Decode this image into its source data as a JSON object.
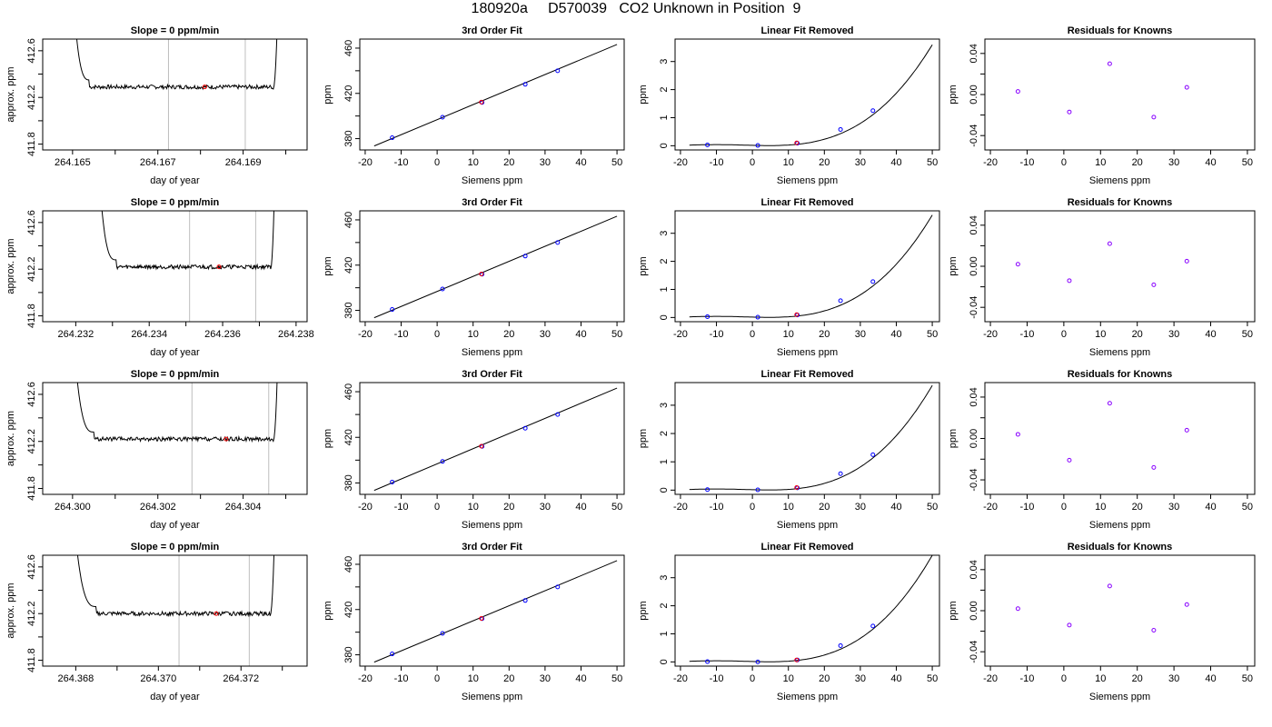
{
  "page_title": "180920a     D570039   CO2 Unknown in Position  9",
  "chart_data": [
    {
      "row": 1,
      "col": 1,
      "type": "line",
      "title": "Slope =  0  ppm/min",
      "xlabel": "day of year",
      "ylabel": "approx. ppm",
      "xlim": [
        264.1643,
        264.1705
      ],
      "ylim": [
        411.75,
        412.7
      ],
      "xticks": [
        264.165,
        264.167,
        264.169
      ],
      "xtick_labels": [
        "264.165",
        "264.167",
        "264.169"
      ],
      "minor_xticks": [
        264.166,
        264.168,
        264.17
      ],
      "yticks": [
        411.8,
        412.2,
        412.6
      ],
      "ytick_labels": [
        "411.8",
        "412.2",
        "412.6"
      ],
      "minor_yticks": [
        412.0,
        412.4
      ],
      "vlines": [
        264.16725,
        264.16905
      ],
      "baseline": 412.29,
      "start_x": 264.1649,
      "end_x": 264.1699,
      "plateau_start": 264.1654,
      "plateau_end": 264.1697,
      "marker": {
        "x": 264.1681,
        "y": 412.29,
        "color": "#ff0000"
      }
    },
    {
      "row": 1,
      "col": 2,
      "type": "line",
      "title": "3rd Order Fit",
      "xlabel": "Siemens ppm",
      "ylabel": "ppm",
      "xlim": [
        -21.5,
        52
      ],
      "ylim": [
        370,
        468
      ],
      "xticks": [
        -20,
        -10,
        0,
        10,
        20,
        30,
        40,
        50
      ],
      "xtick_labels": [
        "-20",
        "-10",
        "0",
        "10",
        "20",
        "30",
        "40",
        "50"
      ],
      "yticks": [
        380,
        420,
        460
      ],
      "ytick_labels": [
        "380",
        "420",
        "460"
      ],
      "minor_yticks": [
        400,
        440
      ],
      "line": {
        "x": [
          -17.5,
          50
        ],
        "y": [
          373.5,
          463.2
        ]
      },
      "points": {
        "x": [
          -12.5,
          1.5,
          12.5,
          24.5,
          33.5
        ],
        "y": [
          380.8,
          398.9,
          412.0,
          428.0,
          440.0
        ]
      },
      "unknown": {
        "x": 12.3,
        "y": 412.3
      }
    },
    {
      "row": 1,
      "col": 3,
      "type": "line",
      "title": "Linear Fit Removed",
      "xlabel": "Siemens ppm",
      "ylabel": "ppm",
      "xlim": [
        -21.5,
        52
      ],
      "ylim": [
        -0.15,
        3.8
      ],
      "xticks": [
        -20,
        -10,
        0,
        10,
        20,
        30,
        40,
        50
      ],
      "xtick_labels": [
        "-20",
        "-10",
        "0",
        "10",
        "20",
        "30",
        "40",
        "50"
      ],
      "yticks": [
        0,
        1,
        2,
        3
      ],
      "ytick_labels": [
        "0",
        "1",
        "2",
        "3"
      ],
      "curve_top": 3.6,
      "points": {
        "x": [
          -12.5,
          1.5,
          12.5,
          24.5,
          33.5
        ],
        "y": [
          0.03,
          0.01,
          0.09,
          0.58,
          1.25
        ]
      },
      "unknown": {
        "x": 12.3,
        "y": 0.1
      }
    },
    {
      "row": 1,
      "col": 4,
      "type": "scatter",
      "title": "Residuals for Knowns",
      "xlabel": "Siemens ppm",
      "ylabel": "ppm",
      "xlim": [
        -21.5,
        52
      ],
      "ylim": [
        -0.054,
        0.054
      ],
      "xticks": [
        -20,
        -10,
        0,
        10,
        20,
        30,
        40,
        50
      ],
      "xtick_labels": [
        "-20",
        "-10",
        "0",
        "10",
        "20",
        "30",
        "40",
        "50"
      ],
      "yticks": [
        -0.04,
        0.0,
        0.04
      ],
      "ytick_labels": [
        "-0.04",
        "0.00",
        "0.04"
      ],
      "minor_yticks": [
        -0.02,
        0.02
      ],
      "points": {
        "x": [
          -12.5,
          1.5,
          12.5,
          24.5,
          33.5
        ],
        "y": [
          0.003,
          -0.017,
          0.03,
          -0.022,
          0.007
        ]
      }
    },
    {
      "row": 2,
      "col": 1,
      "type": "line",
      "title": "Slope =  0  ppm/min",
      "xlabel": "day of year",
      "ylabel": "approx. ppm",
      "xlim": [
        264.2311,
        264.2383
      ],
      "ylim": [
        411.75,
        412.7
      ],
      "xticks": [
        264.232,
        264.234,
        264.236,
        264.238
      ],
      "xtick_labels": [
        "264.232",
        "264.234",
        "264.236",
        "264.238"
      ],
      "minor_xticks": [
        264.233,
        264.235,
        264.237
      ],
      "yticks": [
        411.8,
        412.2,
        412.6
      ],
      "ytick_labels": [
        "411.8",
        "412.2",
        "412.6"
      ],
      "minor_yticks": [
        412.0,
        412.4
      ],
      "vlines": [
        264.2351,
        264.2369
      ],
      "baseline": 412.22,
      "start_x": 264.2325,
      "end_x": 264.2375,
      "plateau_start": 264.2331,
      "plateau_end": 264.2373,
      "marker": {
        "x": 264.2359,
        "y": 412.22,
        "color": "#ff0000"
      }
    },
    {
      "row": 2,
      "col": 2,
      "type": "line",
      "title": "3rd Order Fit",
      "xlabel": "Siemens ppm",
      "ylabel": "ppm",
      "xlim": [
        -21.5,
        52
      ],
      "ylim": [
        370,
        468
      ],
      "xticks": [
        -20,
        -10,
        0,
        10,
        20,
        30,
        40,
        50
      ],
      "xtick_labels": [
        "-20",
        "-10",
        "0",
        "10",
        "20",
        "30",
        "40",
        "50"
      ],
      "yticks": [
        380,
        420,
        460
      ],
      "ytick_labels": [
        "380",
        "420",
        "460"
      ],
      "minor_yticks": [
        400,
        440
      ],
      "line": {
        "x": [
          -17.5,
          50
        ],
        "y": [
          373.5,
          463.2
        ]
      },
      "points": {
        "x": [
          -12.5,
          1.5,
          12.5,
          24.5,
          33.5
        ],
        "y": [
          380.8,
          398.9,
          412.0,
          428.0,
          440.0
        ]
      },
      "unknown": {
        "x": 12.3,
        "y": 412.2
      }
    },
    {
      "row": 2,
      "col": 3,
      "type": "line",
      "title": "Linear Fit Removed",
      "xlabel": "Siemens ppm",
      "ylabel": "ppm",
      "xlim": [
        -21.5,
        52
      ],
      "ylim": [
        -0.15,
        3.8
      ],
      "xticks": [
        -20,
        -10,
        0,
        10,
        20,
        30,
        40,
        50
      ],
      "xtick_labels": [
        "-20",
        "-10",
        "0",
        "10",
        "20",
        "30",
        "40",
        "50"
      ],
      "yticks": [
        0,
        1,
        2,
        3
      ],
      "ytick_labels": [
        "0",
        "1",
        "2",
        "3"
      ],
      "curve_top": 3.65,
      "points": {
        "x": [
          -12.5,
          1.5,
          12.5,
          24.5,
          33.5
        ],
        "y": [
          0.03,
          0.01,
          0.09,
          0.6,
          1.28
        ]
      },
      "unknown": {
        "x": 12.3,
        "y": 0.1
      }
    },
    {
      "row": 2,
      "col": 4,
      "type": "scatter",
      "title": "Residuals for Knowns",
      "xlabel": "Siemens ppm",
      "ylabel": "ppm",
      "xlim": [
        -21.5,
        52
      ],
      "ylim": [
        -0.054,
        0.054
      ],
      "xticks": [
        -20,
        -10,
        0,
        10,
        20,
        30,
        40,
        50
      ],
      "xtick_labels": [
        "-20",
        "-10",
        "0",
        "10",
        "20",
        "30",
        "40",
        "50"
      ],
      "yticks": [
        -0.04,
        0.0,
        0.04
      ],
      "ytick_labels": [
        "-0.04",
        "0.00",
        "0.04"
      ],
      "minor_yticks": [
        -0.02,
        0.02
      ],
      "points": {
        "x": [
          -12.5,
          1.5,
          12.5,
          24.5,
          33.5
        ],
        "y": [
          0.002,
          -0.014,
          0.022,
          -0.018,
          0.005
        ]
      }
    },
    {
      "row": 3,
      "col": 1,
      "type": "line",
      "title": "Slope =  0  ppm/min",
      "xlabel": "day of year",
      "ylabel": "approx. ppm",
      "xlim": [
        264.2993,
        264.3055
      ],
      "ylim": [
        411.75,
        412.7
      ],
      "xticks": [
        264.3,
        264.302,
        264.304
      ],
      "xtick_labels": [
        "264.300",
        "264.302",
        "264.304"
      ],
      "minor_xticks": [
        264.301,
        264.303,
        264.305
      ],
      "yticks": [
        411.8,
        412.2,
        412.6
      ],
      "ytick_labels": [
        "411.8",
        "412.2",
        "412.6"
      ],
      "minor_yticks": [
        412.0,
        412.4
      ],
      "vlines": [
        264.3028,
        264.3046
      ],
      "baseline": 412.22,
      "start_x": 264.2999,
      "end_x": 264.3049,
      "plateau_start": 264.3005,
      "plateau_end": 264.3047,
      "marker": {
        "x": 264.3036,
        "y": 412.22,
        "color": "#ff0000"
      }
    },
    {
      "row": 3,
      "col": 2,
      "type": "line",
      "title": "3rd Order Fit",
      "xlabel": "Siemens ppm",
      "ylabel": "ppm",
      "xlim": [
        -21.5,
        52
      ],
      "ylim": [
        370,
        468
      ],
      "xticks": [
        -20,
        -10,
        0,
        10,
        20,
        30,
        40,
        50
      ],
      "xtick_labels": [
        "-20",
        "-10",
        "0",
        "10",
        "20",
        "30",
        "40",
        "50"
      ],
      "yticks": [
        380,
        420,
        460
      ],
      "ytick_labels": [
        "380",
        "420",
        "460"
      ],
      "minor_yticks": [
        400,
        440
      ],
      "line": {
        "x": [
          -17.5,
          50
        ],
        "y": [
          373.5,
          463.2
        ]
      },
      "points": {
        "x": [
          -12.5,
          1.5,
          12.5,
          24.5,
          33.5
        ],
        "y": [
          380.8,
          398.9,
          412.0,
          428.0,
          440.0
        ]
      },
      "unknown": {
        "x": 12.3,
        "y": 412.2
      }
    },
    {
      "row": 3,
      "col": 3,
      "type": "line",
      "title": "Linear Fit Removed",
      "xlabel": "Siemens ppm",
      "ylabel": "ppm",
      "xlim": [
        -21.5,
        52
      ],
      "ylim": [
        -0.15,
        3.8
      ],
      "xticks": [
        -20,
        -10,
        0,
        10,
        20,
        30,
        40,
        50
      ],
      "xtick_labels": [
        "-20",
        "-10",
        "0",
        "10",
        "20",
        "30",
        "40",
        "50"
      ],
      "yticks": [
        0,
        1,
        2,
        3
      ],
      "ytick_labels": [
        "0",
        "1",
        "2",
        "3"
      ],
      "curve_top": 3.7,
      "points": {
        "x": [
          -12.5,
          1.5,
          12.5,
          24.5,
          33.5
        ],
        "y": [
          0.02,
          0.01,
          0.08,
          0.58,
          1.25
        ]
      },
      "unknown": {
        "x": 12.3,
        "y": 0.09
      }
    },
    {
      "row": 3,
      "col": 4,
      "type": "scatter",
      "title": "Residuals for Knowns",
      "xlabel": "Siemens ppm",
      "ylabel": "ppm",
      "xlim": [
        -21.5,
        52
      ],
      "ylim": [
        -0.054,
        0.054
      ],
      "xticks": [
        -20,
        -10,
        0,
        10,
        20,
        30,
        40,
        50
      ],
      "xtick_labels": [
        "-20",
        "-10",
        "0",
        "10",
        "20",
        "30",
        "40",
        "50"
      ],
      "yticks": [
        -0.04,
        0.0,
        0.04
      ],
      "ytick_labels": [
        "-0.04",
        "0.00",
        "0.04"
      ],
      "minor_yticks": [
        -0.02,
        0.02
      ],
      "points": {
        "x": [
          -12.5,
          1.5,
          12.5,
          24.5,
          33.5
        ],
        "y": [
          0.004,
          -0.021,
          0.034,
          -0.028,
          0.008
        ]
      }
    },
    {
      "row": 4,
      "col": 1,
      "type": "line",
      "title": "Slope =  0  ppm/min",
      "xlabel": "day of year",
      "ylabel": "approx. ppm",
      "xlim": [
        264.3672,
        264.3736
      ],
      "ylim": [
        411.75,
        412.7
      ],
      "xticks": [
        264.368,
        264.37,
        264.372
      ],
      "xtick_labels": [
        "264.368",
        "264.370",
        "264.372"
      ],
      "minor_xticks": [
        264.369,
        264.371,
        264.373
      ],
      "yticks": [
        411.8,
        412.2,
        412.6
      ],
      "ytick_labels": [
        "411.8",
        "412.2",
        "412.6"
      ],
      "minor_yticks": [
        412.0,
        412.4
      ],
      "vlines": [
        264.3705,
        264.3722
      ],
      "baseline": 412.2,
      "start_x": 264.3678,
      "end_x": 264.3729,
      "plateau_start": 264.3685,
      "plateau_end": 264.3727,
      "marker": {
        "x": 264.3714,
        "y": 412.2,
        "color": "#ff0000"
      }
    },
    {
      "row": 4,
      "col": 2,
      "type": "line",
      "title": "3rd Order Fit",
      "xlabel": "Siemens ppm",
      "ylabel": "ppm",
      "xlim": [
        -21.5,
        52
      ],
      "ylim": [
        370,
        468
      ],
      "xticks": [
        -20,
        -10,
        0,
        10,
        20,
        30,
        40,
        50
      ],
      "xtick_labels": [
        "-20",
        "-10",
        "0",
        "10",
        "20",
        "30",
        "40",
        "50"
      ],
      "yticks": [
        380,
        420,
        460
      ],
      "ytick_labels": [
        "380",
        "420",
        "460"
      ],
      "minor_yticks": [
        400,
        440
      ],
      "line": {
        "x": [
          -17.5,
          50
        ],
        "y": [
          373.5,
          463.2
        ]
      },
      "points": {
        "x": [
          -12.5,
          1.5,
          12.5,
          24.5,
          33.5
        ],
        "y": [
          380.8,
          398.9,
          412.0,
          428.0,
          440.0
        ]
      },
      "unknown": {
        "x": 12.3,
        "y": 412.2
      }
    },
    {
      "row": 4,
      "col": 3,
      "type": "line",
      "title": "Linear Fit Removed",
      "xlabel": "Siemens ppm",
      "ylabel": "ppm",
      "xlim": [
        -21.5,
        52
      ],
      "ylim": [
        -0.15,
        3.8
      ],
      "xticks": [
        -20,
        -10,
        0,
        10,
        20,
        30,
        40,
        50
      ],
      "xtick_labels": [
        "-20",
        "-10",
        "0",
        "10",
        "20",
        "30",
        "40",
        "50"
      ],
      "yticks": [
        0,
        1,
        2,
        3
      ],
      "ytick_labels": [
        "0",
        "1",
        "2",
        "3"
      ],
      "curve_top": 3.8,
      "points": {
        "x": [
          -12.5,
          1.5,
          12.5,
          24.5,
          33.5
        ],
        "y": [
          0.01,
          0.0,
          0.07,
          0.58,
          1.28
        ]
      },
      "unknown": {
        "x": 12.3,
        "y": 0.07
      }
    },
    {
      "row": 4,
      "col": 4,
      "type": "scatter",
      "title": "Residuals for Knowns",
      "xlabel": "Siemens ppm",
      "ylabel": "ppm",
      "xlim": [
        -21.5,
        52
      ],
      "ylim": [
        -0.054,
        0.054
      ],
      "xticks": [
        -20,
        -10,
        0,
        10,
        20,
        30,
        40,
        50
      ],
      "xtick_labels": [
        "-20",
        "-10",
        "0",
        "10",
        "20",
        "30",
        "40",
        "50"
      ],
      "yticks": [
        -0.04,
        0.0,
        0.04
      ],
      "ytick_labels": [
        "-0.04",
        "0.00",
        "0.04"
      ],
      "minor_yticks": [
        -0.02,
        0.02
      ],
      "points": {
        "x": [
          -12.5,
          1.5,
          12.5,
          24.5,
          33.5
        ],
        "y": [
          0.002,
          -0.014,
          0.024,
          -0.019,
          0.006
        ]
      }
    }
  ],
  "colors": {
    "axis": "#000000",
    "points": "#0000ff",
    "residual_points": "#8800ff",
    "unknown": "#ff0000",
    "vlines": "#bebebe"
  }
}
